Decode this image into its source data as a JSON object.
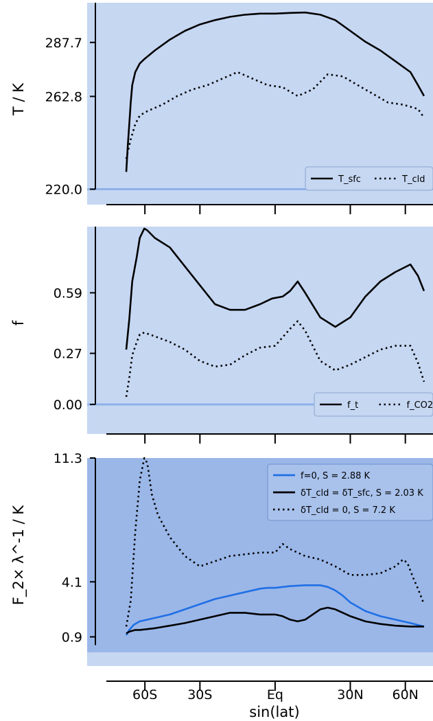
{
  "figure": {
    "xlabel": "sin(lat)",
    "xticks": {
      "values": [
        -0.866,
        -0.5,
        0,
        0.5,
        0.866
      ],
      "labels": [
        "60S",
        "30S",
        "Eq",
        "30N",
        "60N"
      ]
    }
  },
  "chart_data": [
    {
      "type": "line",
      "ylabel": "T / K",
      "yticks": [
        220.0,
        262.8,
        287.7
      ],
      "ytick_labels": [
        "220.0",
        "262.8",
        "287.7"
      ],
      "ylim": [
        217,
        306
      ],
      "xlim": [
        -1.25,
        1.05
      ],
      "legend": {
        "placement": "bottom-right",
        "entries": [
          "T_sfc",
          "T_cld"
        ]
      },
      "series": [
        {
          "name": "T_sfc",
          "style": "solid",
          "color": "#000000",
          "x": [
            -0.99,
            -0.98,
            -0.97,
            -0.96,
            -0.95,
            -0.93,
            -0.9,
            -0.87,
            -0.8,
            -0.7,
            -0.6,
            -0.5,
            -0.4,
            -0.3,
            -0.2,
            -0.1,
            0,
            0.1,
            0.2,
            0.3,
            0.4,
            0.5,
            0.6,
            0.7,
            0.8,
            0.9,
            0.95,
            0.99
          ],
          "y": [
            228,
            240,
            250,
            260,
            268,
            274,
            278,
            280,
            284,
            289,
            293,
            296,
            298,
            299.5,
            300.5,
            301,
            301,
            301.3,
            301.5,
            300.5,
            298,
            293,
            288,
            284,
            279,
            274,
            268,
            263
          ]
        },
        {
          "name": "T_cld",
          "style": "dotted",
          "color": "#000000",
          "x": [
            -0.99,
            -0.96,
            -0.93,
            -0.9,
            -0.85,
            -0.75,
            -0.65,
            -0.55,
            -0.45,
            -0.35,
            -0.25,
            -0.15,
            -0.05,
            0.05,
            0.15,
            0.25,
            0.35,
            0.45,
            0.55,
            0.65,
            0.75,
            0.85,
            0.95,
            0.99
          ],
          "y": [
            234,
            243,
            250,
            254,
            256,
            259,
            263,
            266,
            268,
            271,
            274,
            271,
            268,
            267,
            263,
            266,
            273,
            272,
            268,
            264,
            260,
            259,
            257,
            253
          ]
        }
      ]
    },
    {
      "type": "line",
      "ylabel": "f",
      "yticks": [
        0.0,
        0.27,
        0.59
      ],
      "ytick_labels": [
        "0.00",
        "0.27",
        "0.59"
      ],
      "ylim": [
        -0.08,
        0.94
      ],
      "xlim": [
        -1.25,
        1.05
      ],
      "legend": {
        "placement": "bottom-right",
        "entries": [
          "f_t",
          "f_CO2"
        ]
      },
      "series": [
        {
          "name": "f_t",
          "style": "solid",
          "color": "#000000",
          "x": [
            -0.99,
            -0.97,
            -0.95,
            -0.92,
            -0.9,
            -0.87,
            -0.85,
            -0.8,
            -0.7,
            -0.6,
            -0.5,
            -0.4,
            -0.3,
            -0.2,
            -0.1,
            -0.02,
            0.05,
            0.1,
            0.15,
            0.2,
            0.3,
            0.4,
            0.5,
            0.6,
            0.7,
            0.8,
            0.9,
            0.95,
            0.99
          ],
          "y": [
            0.29,
            0.45,
            0.65,
            0.78,
            0.88,
            0.93,
            0.92,
            0.88,
            0.83,
            0.73,
            0.63,
            0.53,
            0.5,
            0.5,
            0.53,
            0.56,
            0.57,
            0.6,
            0.65,
            0.59,
            0.46,
            0.41,
            0.46,
            0.57,
            0.65,
            0.7,
            0.74,
            0.68,
            0.6
          ]
        },
        {
          "name": "f_CO2",
          "style": "dotted",
          "color": "#000000",
          "x": [
            -0.99,
            -0.97,
            -0.95,
            -0.92,
            -0.9,
            -0.87,
            -0.8,
            -0.7,
            -0.6,
            -0.5,
            -0.4,
            -0.3,
            -0.2,
            -0.1,
            0,
            0.1,
            0.15,
            0.2,
            0.3,
            0.4,
            0.5,
            0.6,
            0.7,
            0.8,
            0.9,
            0.95,
            0.99
          ],
          "y": [
            0.04,
            0.14,
            0.26,
            0.33,
            0.37,
            0.38,
            0.36,
            0.33,
            0.29,
            0.23,
            0.2,
            0.21,
            0.26,
            0.3,
            0.31,
            0.4,
            0.44,
            0.39,
            0.23,
            0.18,
            0.21,
            0.25,
            0.29,
            0.31,
            0.31,
            0.22,
            0.12
          ]
        }
      ]
    },
    {
      "type": "line",
      "ylabel": "F_2× λ^-1 / K",
      "yticks": [
        0.9,
        4.1,
        11.3
      ],
      "ytick_labels": [
        "0.9",
        "4.1",
        "11.3"
      ],
      "ylim": [
        0.0,
        11.3
      ],
      "xlim": [
        -1.25,
        1.05
      ],
      "legend": {
        "placement": "top-right",
        "entries": [
          "f=0, S = 2.88 K",
          "δT_cld = δT_sfc, S = 2.03 K",
          "δT_cld = 0, S = 7.2 K"
        ]
      },
      "series": [
        {
          "name": "f=0, S = 2.88 K",
          "style": "solid",
          "color": "#1f6fe5",
          "x": [
            -0.99,
            -0.97,
            -0.94,
            -0.9,
            -0.85,
            -0.8,
            -0.7,
            -0.6,
            -0.5,
            -0.4,
            -0.3,
            -0.2,
            -0.1,
            -0.05,
            0,
            0.1,
            0.2,
            0.3,
            0.35,
            0.4,
            0.45,
            0.5,
            0.6,
            0.7,
            0.8,
            0.9,
            0.99
          ],
          "y": [
            1.0,
            1.3,
            1.6,
            1.8,
            1.9,
            2.0,
            2.2,
            2.5,
            2.8,
            3.1,
            3.3,
            3.5,
            3.7,
            3.75,
            3.75,
            3.85,
            3.9,
            3.9,
            3.8,
            3.6,
            3.3,
            2.9,
            2.4,
            2.1,
            1.9,
            1.7,
            1.5
          ]
        },
        {
          "name": "δT_cld = δT_sfc, S = 2.03 K",
          "style": "solid",
          "color": "#000000",
          "x": [
            -0.99,
            -0.97,
            -0.93,
            -0.9,
            -0.85,
            -0.8,
            -0.7,
            -0.6,
            -0.5,
            -0.4,
            -0.3,
            -0.2,
            -0.1,
            0,
            0.05,
            0.1,
            0.15,
            0.2,
            0.25,
            0.3,
            0.35,
            0.4,
            0.5,
            0.6,
            0.7,
            0.8,
            0.9,
            0.99
          ],
          "y": [
            1.1,
            1.2,
            1.3,
            1.3,
            1.35,
            1.4,
            1.55,
            1.7,
            1.9,
            2.1,
            2.3,
            2.3,
            2.2,
            2.2,
            2.1,
            1.9,
            1.8,
            1.9,
            2.2,
            2.5,
            2.6,
            2.5,
            2.1,
            1.8,
            1.65,
            1.55,
            1.5,
            1.5
          ]
        },
        {
          "name": "δT_cld = 0, S = 7.2 K",
          "style": "dotted",
          "color": "#000000",
          "x": [
            -0.99,
            -0.96,
            -0.93,
            -0.9,
            -0.87,
            -0.85,
            -0.82,
            -0.78,
            -0.7,
            -0.6,
            -0.5,
            -0.4,
            -0.3,
            -0.2,
            -0.1,
            0,
            0.05,
            0.1,
            0.2,
            0.3,
            0.4,
            0.5,
            0.6,
            0.7,
            0.8,
            0.85,
            0.88,
            0.92,
            0.95,
            0.99
          ],
          "y": [
            1.5,
            3.0,
            7.0,
            10.0,
            11.3,
            11.0,
            9.2,
            8.0,
            6.7,
            5.6,
            5.0,
            5.3,
            5.6,
            5.7,
            5.8,
            5.8,
            6.3,
            6.0,
            5.6,
            5.4,
            5.0,
            4.5,
            4.5,
            4.6,
            5.0,
            5.4,
            5.2,
            4.3,
            3.7,
            2.8
          ]
        }
      ]
    }
  ]
}
